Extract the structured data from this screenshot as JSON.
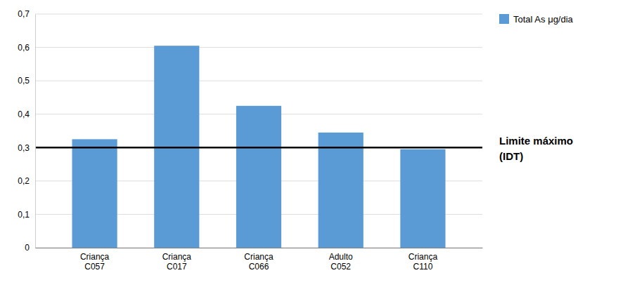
{
  "chart_data": {
    "type": "bar",
    "categories": [
      "Criança\nC057",
      "Criança\nC017",
      "Criança\nC066",
      "Adulto\nC052",
      "Criança\nC110"
    ],
    "series": [
      {
        "name": "Total As μg/dia",
        "color": "#5B9BD5",
        "values": [
          0.325,
          0.605,
          0.425,
          0.345,
          0.295
        ]
      }
    ],
    "ylim": [
      0,
      0.7
    ],
    "yticks": [
      0,
      {
        "value": 0.1,
        "label": "0,1"
      },
      {
        "value": 0.2,
        "label": "0,2"
      },
      {
        "value": 0.3,
        "label": "0,3"
      },
      {
        "value": 0.4,
        "label": "0,4"
      },
      {
        "value": 0.5,
        "label": "0,5"
      },
      {
        "value": 0.6,
        "label": "0,6"
      },
      {
        "value": 0.7,
        "label": "0,7"
      }
    ],
    "hline": {
      "y": 0.3,
      "label": [
        "Limite máximo",
        "(IDT)"
      ]
    },
    "grid": true,
    "legend": "right"
  }
}
